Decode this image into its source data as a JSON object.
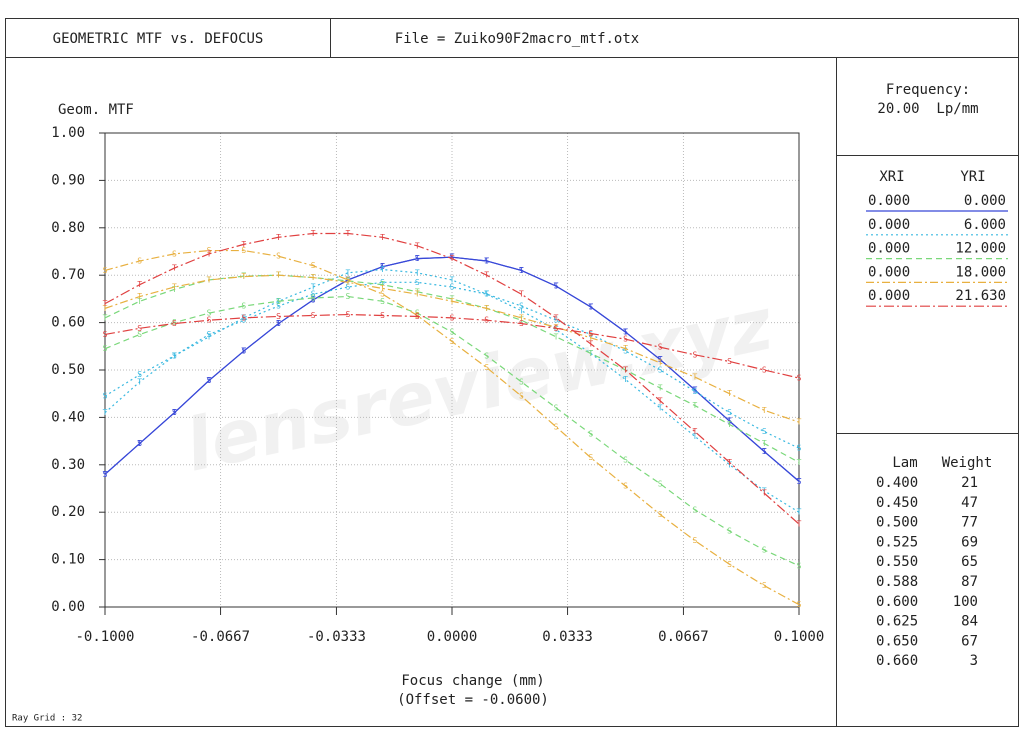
{
  "header": {
    "title": "GEOMETRIC MTF vs. DEFOCUS",
    "file": "File = Zuiko90F2macro_mtf.otx"
  },
  "frequency": {
    "label": "Frequency:",
    "value": "20.00  Lp/mm"
  },
  "field_legend": {
    "headers": [
      "XRI",
      "YRI"
    ]
  },
  "wavelengths": {
    "headers": [
      "Lam",
      "Weight"
    ],
    "rows": [
      [
        "0.400",
        "21"
      ],
      [
        "0.450",
        "47"
      ],
      [
        "0.500",
        "77"
      ],
      [
        "0.525",
        "69"
      ],
      [
        "0.550",
        "65"
      ],
      [
        "0.588",
        "87"
      ],
      [
        "0.600",
        "100"
      ],
      [
        "0.625",
        "84"
      ],
      [
        "0.650",
        "67"
      ],
      [
        "0.660",
        "3"
      ]
    ]
  },
  "footer": "Ray Grid : 32",
  "watermark": "lensreview.xyz",
  "chart_data": {
    "type": "line",
    "y_label": "Geom. MTF",
    "x_label": "Focus change (mm)",
    "x_sublabel": "(Offset = -0.0600)",
    "x": [
      -0.1,
      -0.09,
      -0.08,
      -0.07,
      -0.06,
      -0.05,
      -0.04,
      -0.03,
      -0.02,
      -0.01,
      0,
      0.01,
      0.02,
      0.03,
      0.04,
      0.05,
      0.06,
      0.07,
      0.08,
      0.09,
      0.1
    ],
    "xlim": [
      -0.1,
      0.1
    ],
    "xticks": [
      {
        "value": -0.1,
        "label": "-0.1000"
      },
      {
        "value": -0.0667,
        "label": "-0.0667"
      },
      {
        "value": -0.0333,
        "label": "-0.0333"
      },
      {
        "value": 0,
        "label": "0.0000"
      },
      {
        "value": 0.0333,
        "label": "0.0333"
      },
      {
        "value": 0.0667,
        "label": "0.0667"
      },
      {
        "value": 0.1,
        "label": "0.1000"
      }
    ],
    "ylim": [
      0,
      1
    ],
    "yticks": [
      {
        "value": 0,
        "label": "0.00"
      },
      {
        "value": 0.1,
        "label": "0.10"
      },
      {
        "value": 0.2,
        "label": "0.20"
      },
      {
        "value": 0.3,
        "label": "0.30"
      },
      {
        "value": 0.4,
        "label": "0.40"
      },
      {
        "value": 0.5,
        "label": "0.50"
      },
      {
        "value": 0.6,
        "label": "0.60"
      },
      {
        "value": 0.7,
        "label": "0.70"
      },
      {
        "value": 0.8,
        "label": "0.80"
      },
      {
        "value": 0.9,
        "label": "0.90"
      },
      {
        "value": 1,
        "label": "1.00"
      }
    ],
    "grid": true,
    "fields": [
      {
        "xri": "0.000",
        "yri": "0.000",
        "color": "#3848d8",
        "dash": "none",
        "series": [
          {
            "marker": "T",
            "values": [
              0.28,
              0.345,
              0.41,
              0.478,
              0.54,
              0.598,
              0.648,
              0.69,
              0.718,
              0.735,
              0.738,
              0.73,
              0.71,
              0.677,
              0.633,
              0.58,
              0.522,
              0.458,
              0.392,
              0.328,
              0.265
            ]
          },
          {
            "marker": "S",
            "values": [
              0.28,
              0.345,
              0.41,
              0.478,
              0.54,
              0.598,
              0.648,
              0.69,
              0.718,
              0.735,
              0.738,
              0.73,
              0.71,
              0.677,
              0.633,
              0.58,
              0.522,
              0.458,
              0.392,
              0.328,
              0.265
            ]
          }
        ]
      },
      {
        "xri": "0.000",
        "yri": "6.000",
        "color": "#38b8e0",
        "dash": "2,3",
        "series": [
          {
            "marker": "T",
            "values": [
              0.41,
              0.475,
              0.53,
              0.57,
              0.61,
              0.645,
              0.675,
              0.705,
              0.712,
              0.705,
              0.69,
              0.66,
              0.625,
              0.585,
              0.535,
              0.48,
              0.42,
              0.36,
              0.3,
              0.245,
              0.2
            ]
          },
          {
            "marker": "S",
            "values": [
              0.445,
              0.49,
              0.53,
              0.575,
              0.605,
              0.635,
              0.66,
              0.675,
              0.685,
              0.685,
              0.675,
              0.66,
              0.635,
              0.605,
              0.575,
              0.54,
              0.5,
              0.455,
              0.41,
              0.37,
              0.335
            ]
          }
        ]
      },
      {
        "xri": "0.000",
        "yri": "12.000",
        "color": "#7ad87a",
        "dash": "6,4",
        "series": [
          {
            "marker": "T",
            "values": [
              0.61,
              0.645,
              0.67,
              0.69,
              0.698,
              0.7,
              0.695,
              0.688,
              0.68,
              0.665,
              0.65,
              0.63,
              0.605,
              0.57,
              0.535,
              0.5,
              0.462,
              0.425,
              0.385,
              0.345,
              0.305
            ]
          },
          {
            "marker": "S",
            "values": [
              0.545,
              0.575,
              0.6,
              0.62,
              0.635,
              0.645,
              0.652,
              0.655,
              0.645,
              0.62,
              0.58,
              0.53,
              0.475,
              0.42,
              0.365,
              0.31,
              0.26,
              0.205,
              0.16,
              0.12,
              0.087
            ]
          }
        ]
      },
      {
        "xri": "0.000",
        "yri": "18.000",
        "color": "#e8b040",
        "dash": "8,3,2,3",
        "series": [
          {
            "marker": "T",
            "values": [
              0.63,
              0.655,
              0.675,
              0.69,
              0.697,
              0.7,
              0.695,
              0.685,
              0.672,
              0.66,
              0.645,
              0.63,
              0.61,
              0.59,
              0.568,
              0.545,
              0.515,
              0.485,
              0.45,
              0.415,
              0.39
            ]
          },
          {
            "marker": "S",
            "values": [
              0.71,
              0.73,
              0.745,
              0.752,
              0.752,
              0.74,
              0.72,
              0.69,
              0.66,
              0.615,
              0.56,
              0.505,
              0.445,
              0.38,
              0.315,
              0.255,
              0.195,
              0.14,
              0.09,
              0.045,
              0.005
            ]
          }
        ]
      },
      {
        "xri": "0.000",
        "yri": "21.630",
        "color": "#e04040",
        "dash": "10,3,2,3",
        "series": [
          {
            "marker": "T",
            "values": [
              0.64,
              0.68,
              0.715,
              0.745,
              0.765,
              0.78,
              0.788,
              0.788,
              0.78,
              0.762,
              0.735,
              0.7,
              0.66,
              0.61,
              0.555,
              0.5,
              0.435,
              0.37,
              0.305,
              0.24,
              0.175
            ]
          },
          {
            "marker": "S",
            "values": [
              0.575,
              0.588,
              0.598,
              0.605,
              0.61,
              0.613,
              0.615,
              0.617,
              0.615,
              0.613,
              0.61,
              0.605,
              0.598,
              0.588,
              0.577,
              0.565,
              0.548,
              0.532,
              0.518,
              0.5,
              0.483
            ]
          }
        ]
      }
    ]
  }
}
